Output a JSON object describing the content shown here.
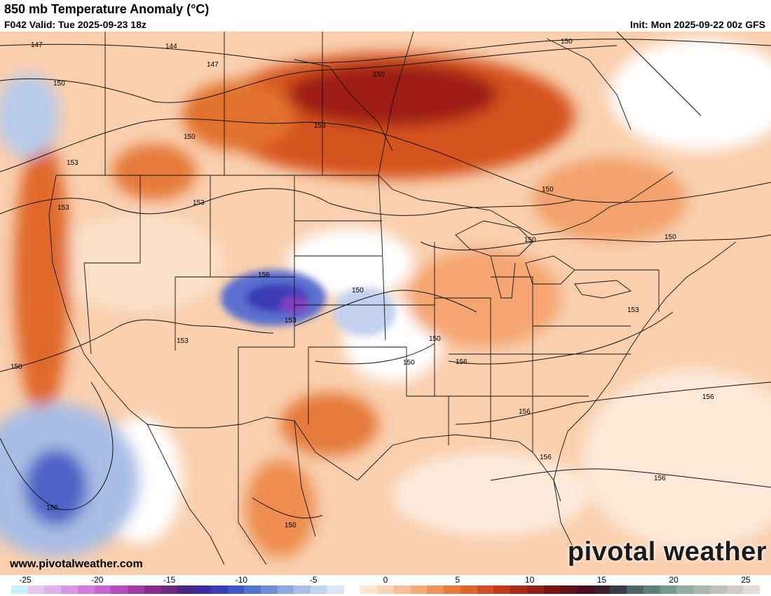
{
  "header": {
    "title": "850 mb Temperature Anomaly (°C)",
    "valid": "F042 Valid: Tue 2025-09-23 18z",
    "init": "Init: Mon 2025-09-22 00z GFS"
  },
  "footer": {
    "url": "www.pivotalweather.com",
    "brand": "pivotal weather"
  },
  "colorbar": {
    "ticks": [
      "-25",
      "-20",
      "-15",
      "-10",
      "-5",
      "0",
      "5",
      "10",
      "15",
      "20",
      "25"
    ],
    "colors": [
      "#c8f1f8",
      "#e8c9ee",
      "#e0b2ea",
      "#d996e4",
      "#d27cdd",
      "#c864d2",
      "#b84cbf",
      "#a23aa8",
      "#8a2c8f",
      "#6e2a7a",
      "#4a2588",
      "#3d2ba0",
      "#3a3fb8",
      "#3f58c8",
      "#5574d2",
      "#6f8ed8",
      "#8ea7de",
      "#abbfe6",
      "#c6d4ef",
      "#dde6f6",
      "#ffffff",
      "#fde6d2",
      "#fbd3b5",
      "#f8bf97",
      "#f5aa79",
      "#f0925a",
      "#ea7a3f",
      "#e0632c",
      "#d14e22",
      "#bf3b1c",
      "#a92c17",
      "#921f14",
      "#7a1512",
      "#62101a",
      "#4a0d24",
      "#3a1c2c",
      "#3c3c4a",
      "#4d6466",
      "#5e8078",
      "#769a8c",
      "#93ac9f",
      "#a9b6ad",
      "#c0c0bb",
      "#d2cdc7",
      "#e2dcd6"
    ]
  },
  "contour_labels": [
    "147",
    "144",
    "147",
    "150",
    "150",
    "150",
    "153",
    "153",
    "150",
    "153",
    "153",
    "150",
    "150",
    "150",
    "156",
    "150",
    "153",
    "153",
    "150",
    "150",
    "153",
    "156",
    "156",
    "156",
    "150",
    "150",
    "156",
    "156",
    "150"
  ]
}
